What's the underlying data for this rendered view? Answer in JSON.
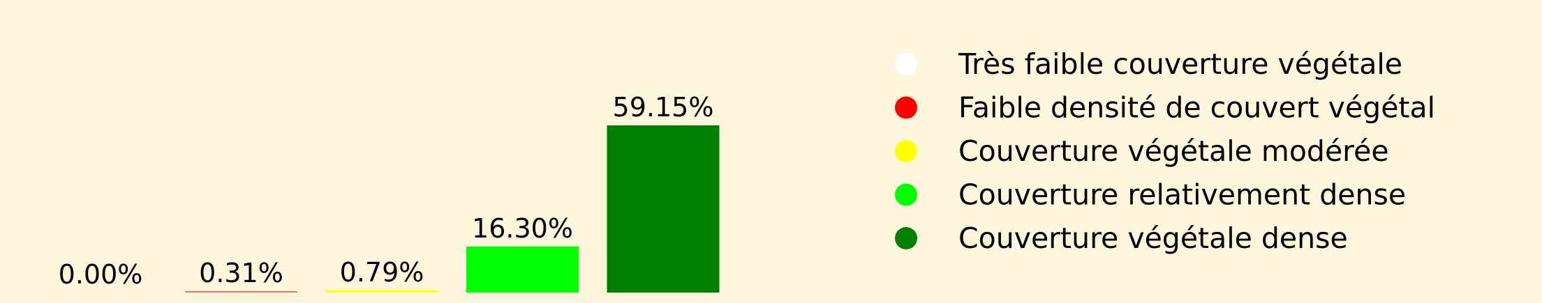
{
  "chart_data": {
    "type": "bar",
    "categories": [
      "Très faible couverture végétale",
      "Faible densité de couvert végétal",
      "Couverture végétale modérée",
      "Couverture relativement dense",
      "Couverture végétale dense"
    ],
    "values": [
      0.0,
      0.31,
      0.79,
      16.3,
      59.15
    ],
    "value_labels": [
      "0.00%",
      "0.31%",
      "0.79%",
      "16.30%",
      "59.15%"
    ],
    "colors": [
      "#ffffff",
      "#ff0000",
      "#ffff00",
      "#00ff00",
      "#008000"
    ],
    "ylim": [
      0,
      59.15
    ],
    "title": "",
    "xlabel": "",
    "ylabel": "",
    "grid": false,
    "axes_visible": false,
    "legend_position": "right"
  }
}
